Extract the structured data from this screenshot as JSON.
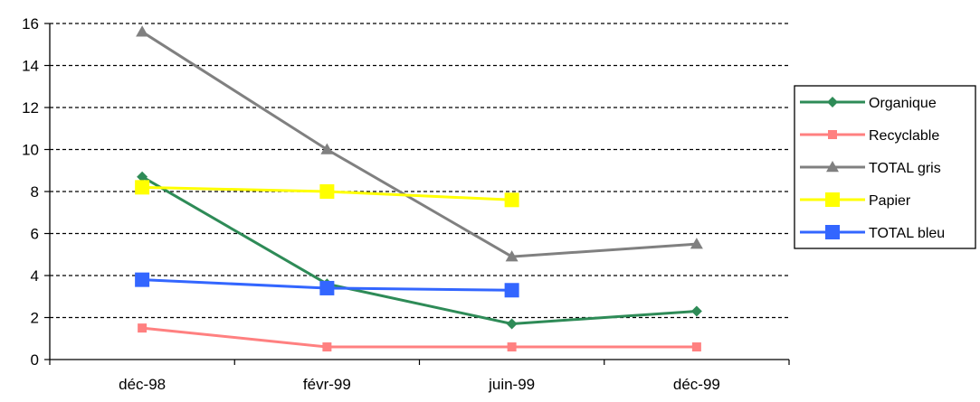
{
  "chart_data": {
    "type": "line",
    "categories": [
      "déc-98",
      "févr-99",
      "juin-99",
      "déc-99"
    ],
    "ylim": [
      0,
      16
    ],
    "yticks": [
      0,
      2,
      4,
      6,
      8,
      10,
      12,
      14,
      16
    ],
    "grid": "horizontal-dashed",
    "legend_position": "right",
    "series": [
      {
        "name": "Organique",
        "color": "#2e8b57",
        "marker": "diamond",
        "values": [
          8.7,
          3.6,
          1.7,
          2.3
        ]
      },
      {
        "name": "Recyclable",
        "color": "#ff8080",
        "marker": "square",
        "values": [
          1.5,
          0.6,
          0.6,
          0.6
        ]
      },
      {
        "name": "TOTAL gris",
        "color": "#808080",
        "marker": "triangle",
        "values": [
          15.6,
          10.0,
          4.9,
          5.5
        ]
      },
      {
        "name": "Papier",
        "color": "#ffff00",
        "marker": "square-lg",
        "values": [
          8.2,
          8.0,
          7.6,
          null
        ]
      },
      {
        "name": "TOTAL bleu",
        "color": "#3366ff",
        "marker": "square-lg",
        "values": [
          3.8,
          3.4,
          3.3,
          null
        ]
      }
    ]
  }
}
